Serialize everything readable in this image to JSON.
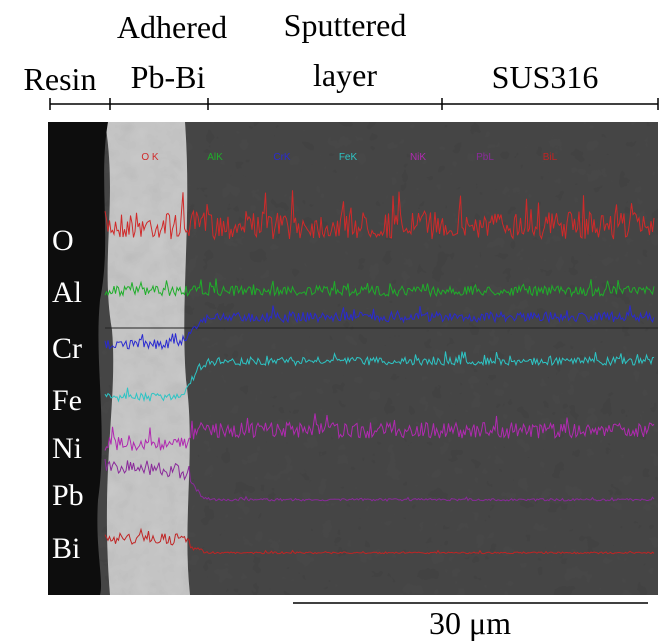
{
  "regions": [
    {
      "lines": [
        "Resin"
      ]
    },
    {
      "lines": [
        "Adhered",
        "Pb-Bi"
      ]
    },
    {
      "lines": [
        "Sputtered",
        "layer"
      ]
    },
    {
      "lines": [
        "SUS316"
      ]
    }
  ],
  "legend": [
    "O K",
    "AlK",
    "CrK",
    "FeK",
    "NiK",
    "PbL",
    "BiL"
  ],
  "elements": [
    "O",
    "Al",
    "Cr",
    "Fe",
    "Ni",
    "Pb",
    "Bi"
  ],
  "scale_bar": "30 μm"
}
